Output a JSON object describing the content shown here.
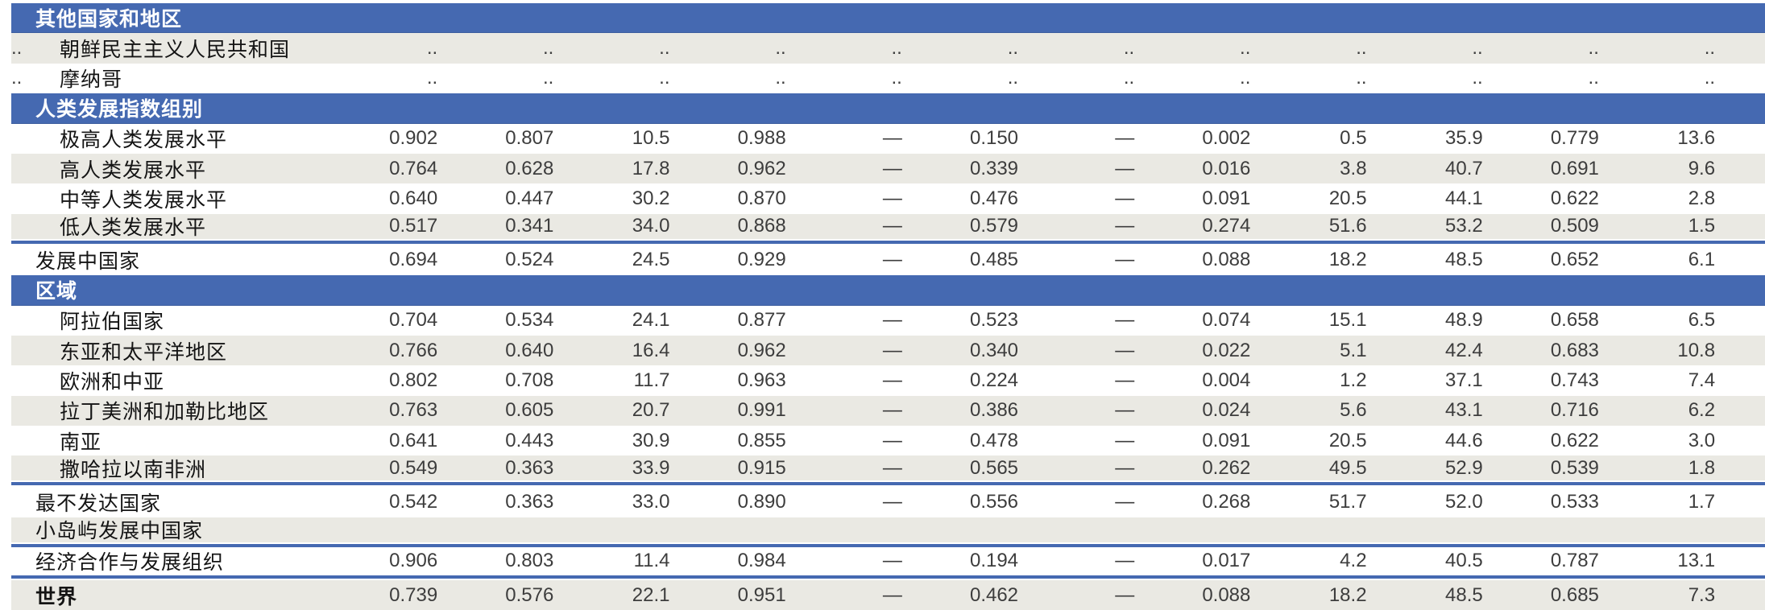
{
  "table": {
    "columns_count": 12,
    "no_data_mark": "..",
    "dash_mark": "—",
    "rows": [
      {
        "type": "section",
        "label": "其他国家和地区"
      },
      {
        "type": "data",
        "rank": "..",
        "label": "朝鲜民主主义人民共和国",
        "indent": true,
        "shade": "gray",
        "values": [
          "..",
          "..",
          "..",
          "..",
          "..",
          "..",
          "..",
          "..",
          "..",
          "..",
          "..",
          ".."
        ]
      },
      {
        "type": "data",
        "rank": "..",
        "label": "摩纳哥",
        "indent": true,
        "shade": "white",
        "values": [
          "..",
          "..",
          "..",
          "..",
          "..",
          "..",
          "..",
          "..",
          "..",
          "..",
          "..",
          ".."
        ]
      },
      {
        "type": "section",
        "label": "人类发展指数组别"
      },
      {
        "type": "data",
        "rank": "",
        "label": "极高人类发展水平",
        "indent": true,
        "shade": "white",
        "values": [
          "0.902",
          "0.807",
          "10.5",
          "0.988",
          "—",
          "0.150",
          "—",
          "0.002",
          "0.5",
          "35.9",
          "0.779",
          "13.6"
        ]
      },
      {
        "type": "data",
        "rank": "",
        "label": "高人类发展水平",
        "indent": true,
        "shade": "gray",
        "values": [
          "0.764",
          "0.628",
          "17.8",
          "0.962",
          "—",
          "0.339",
          "—",
          "0.016",
          "3.8",
          "40.7",
          "0.691",
          "9.6"
        ]
      },
      {
        "type": "data",
        "rank": "",
        "label": "中等人类发展水平",
        "indent": true,
        "shade": "white",
        "values": [
          "0.640",
          "0.447",
          "30.2",
          "0.870",
          "—",
          "0.476",
          "—",
          "0.091",
          "20.5",
          "44.1",
          "0.622",
          "2.8"
        ]
      },
      {
        "type": "data",
        "rank": "",
        "label": "低人类发展水平",
        "indent": true,
        "shade": "gray",
        "short": true,
        "rule_after": true,
        "values": [
          "0.517",
          "0.341",
          "34.0",
          "0.868",
          "—",
          "0.579",
          "—",
          "0.274",
          "51.6",
          "53.2",
          "0.509",
          "1.5"
        ]
      },
      {
        "type": "data",
        "rank": "",
        "label": "发展中国家",
        "indent": false,
        "shade": "white",
        "values": [
          "0.694",
          "0.524",
          "24.5",
          "0.929",
          "—",
          "0.485",
          "—",
          "0.088",
          "18.2",
          "48.5",
          "0.652",
          "6.1"
        ]
      },
      {
        "type": "section",
        "label": "区域"
      },
      {
        "type": "data",
        "rank": "",
        "label": "阿拉伯国家",
        "indent": true,
        "shade": "white",
        "values": [
          "0.704",
          "0.534",
          "24.1",
          "0.877",
          "—",
          "0.523",
          "—",
          "0.074",
          "15.1",
          "48.9",
          "0.658",
          "6.5"
        ]
      },
      {
        "type": "data",
        "rank": "",
        "label": "东亚和太平洋地区",
        "indent": true,
        "shade": "gray",
        "values": [
          "0.766",
          "0.640",
          "16.4",
          "0.962",
          "—",
          "0.340",
          "—",
          "0.022",
          "5.1",
          "42.4",
          "0.683",
          "10.8"
        ]
      },
      {
        "type": "data",
        "rank": "",
        "label": "欧洲和中亚",
        "indent": true,
        "shade": "white",
        "values": [
          "0.802",
          "0.708",
          "11.7",
          "0.963",
          "—",
          "0.224",
          "—",
          "0.004",
          "1.2",
          "37.1",
          "0.743",
          "7.4"
        ]
      },
      {
        "type": "data",
        "rank": "",
        "label": "拉丁美洲和加勒比地区",
        "indent": true,
        "shade": "gray",
        "values": [
          "0.763",
          "0.605",
          "20.7",
          "0.991",
          "—",
          "0.386",
          "—",
          "0.024",
          "5.6",
          "43.1",
          "0.716",
          "6.2"
        ]
      },
      {
        "type": "data",
        "rank": "",
        "label": "南亚",
        "indent": true,
        "shade": "white",
        "values": [
          "0.641",
          "0.443",
          "30.9",
          "0.855",
          "—",
          "0.478",
          "—",
          "0.091",
          "20.5",
          "44.6",
          "0.622",
          "3.0"
        ]
      },
      {
        "type": "data",
        "rank": "",
        "label": "撒哈拉以南非洲",
        "indent": true,
        "shade": "gray",
        "short": true,
        "rule_after": true,
        "values": [
          "0.549",
          "0.363",
          "33.9",
          "0.915",
          "—",
          "0.565",
          "—",
          "0.262",
          "49.5",
          "52.9",
          "0.539",
          "1.8"
        ]
      },
      {
        "type": "data",
        "rank": "",
        "label": "最不发达国家",
        "indent": false,
        "shade": "white",
        "values": [
          "0.542",
          "0.363",
          "33.0",
          "0.890",
          "—",
          "0.556",
          "—",
          "0.268",
          "51.7",
          "52.0",
          "0.533",
          "1.7"
        ]
      },
      {
        "type": "data",
        "rank": "",
        "label": "小岛屿发展中国家",
        "indent": false,
        "shade": "gray",
        "short": true,
        "rule_after": true,
        "values": [
          "",
          "",
          "",
          "",
          "",
          "",
          "",
          "",
          "",
          "",
          "",
          ""
        ]
      },
      {
        "type": "data",
        "rank": "",
        "label": "经济合作与发展组织",
        "indent": false,
        "shade": "white",
        "short": true,
        "rule_after": true,
        "values": [
          "0.906",
          "0.803",
          "11.4",
          "0.984",
          "—",
          "0.194",
          "—",
          "0.017",
          "4.2",
          "40.5",
          "0.787",
          "13.1"
        ]
      },
      {
        "type": "data",
        "rank": "",
        "label": "世界",
        "indent": false,
        "shade": "gray",
        "bold": true,
        "values": [
          "0.739",
          "0.576",
          "22.1",
          "0.951",
          "—",
          "0.462",
          "—",
          "0.088",
          "18.2",
          "48.5",
          "0.685",
          "7.3"
        ]
      }
    ]
  },
  "colors": {
    "section_band": "#4569b1",
    "row_gray": "#eae9e3",
    "row_white": "#ffffff",
    "rule_blue": "#4569b1",
    "text_label": "#141414",
    "text_value": "#3d3d3d"
  }
}
